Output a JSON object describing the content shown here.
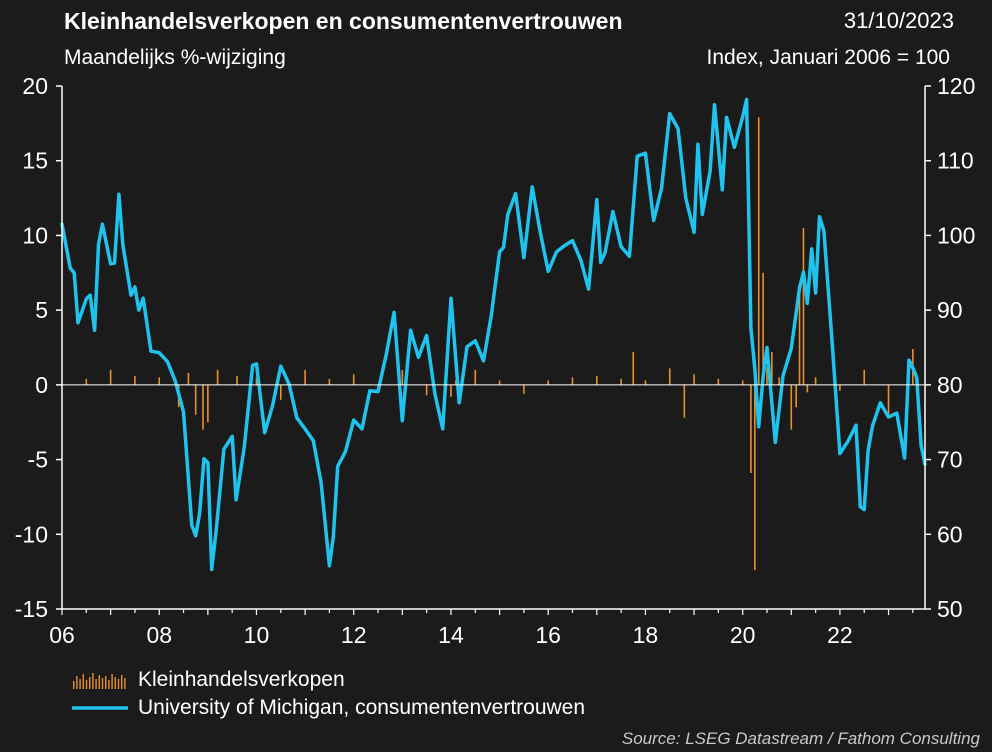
{
  "header": {
    "title": "Kleinhandelsverkopen en consumentenvertrouwen",
    "date": "31/10/2023",
    "left_axis_label": "Maandelijks %-wijziging",
    "right_axis_label": "Index, Januari 2006 = 100"
  },
  "footer": {
    "source": "Source: LSEG Datastream / Fathom Consulting"
  },
  "colors": {
    "background": "#1b1b1b",
    "retail_bars": "#e8902a",
    "sentiment_line": "#1fc3ee",
    "axis": "#ffffff"
  },
  "chart_data": {
    "type": "bar+line",
    "title": "Kleinhandelsverkopen en consumentenvertrouwen",
    "x_tick_labels": [
      "06",
      "08",
      "10",
      "12",
      "14",
      "16",
      "18",
      "20",
      "22"
    ],
    "x_range": [
      2006.0,
      2023.75
    ],
    "left_axis": {
      "label": "Maandelijks %-wijziging",
      "ylim": [
        -15,
        20
      ],
      "ticks": [
        -15,
        -10,
        -5,
        0,
        5,
        10,
        15,
        20
      ]
    },
    "right_axis": {
      "label": "Index, Januari 2006 = 100",
      "ylim": [
        50,
        120
      ],
      "ticks": [
        50,
        60,
        70,
        80,
        90,
        100,
        110,
        120
      ]
    },
    "grid": false,
    "legend_position": "bottom-left",
    "series": [
      {
        "name": "Kleinhandelsverkopen",
        "type": "bar",
        "axis": "left",
        "x": [
          2006.5,
          2007.0,
          2007.5,
          2008.0,
          2008.4,
          2008.6,
          2008.75,
          2008.9,
          2009.0,
          2009.2,
          2009.6,
          2010.0,
          2010.5,
          2011.0,
          2011.5,
          2012.0,
          2012.5,
          2013.0,
          2013.5,
          2014.0,
          2014.1,
          2014.5,
          2015.0,
          2015.5,
          2016.0,
          2016.5,
          2017.0,
          2017.5,
          2017.75,
          2018.0,
          2018.5,
          2018.8,
          2019.0,
          2019.5,
          2020.0,
          2020.17,
          2020.25,
          2020.33,
          2020.42,
          2020.5,
          2020.6,
          2020.75,
          2021.0,
          2021.1,
          2021.17,
          2021.25,
          2021.33,
          2021.5,
          2022.0,
          2022.5,
          2023.0,
          2023.5
        ],
        "values": [
          0.4,
          1.0,
          0.6,
          0.5,
          -1.5,
          0.8,
          -2.0,
          -3.0,
          -2.5,
          1.0,
          0.6,
          0.5,
          -1.0,
          1.0,
          0.4,
          0.7,
          -0.5,
          1.0,
          -0.7,
          -0.8,
          0.3,
          1.0,
          0.3,
          -0.6,
          0.3,
          0.5,
          0.6,
          0.4,
          2.2,
          0.3,
          1.1,
          -2.2,
          0.7,
          0.4,
          0.3,
          -5.9,
          -12.4,
          17.9,
          7.5,
          1.2,
          2.2,
          0.5,
          -3.0,
          -1.5,
          6.2,
          10.5,
          -0.5,
          0.5,
          -0.4,
          1.0,
          -2.0,
          2.4
        ]
      },
      {
        "name": "University of Michigan, consumentenvertrouwen",
        "type": "line",
        "axis": "right",
        "x": [
          2006.0,
          2006.17,
          2006.25,
          2006.33,
          2006.5,
          2006.58,
          2006.67,
          2006.75,
          2006.83,
          2007.0,
          2007.08,
          2007.17,
          2007.25,
          2007.42,
          2007.5,
          2007.58,
          2007.67,
          2007.83,
          2008.0,
          2008.17,
          2008.33,
          2008.5,
          2008.67,
          2008.75,
          2008.83,
          2008.92,
          2009.0,
          2009.08,
          2009.17,
          2009.33,
          2009.5,
          2009.58,
          2009.75,
          2009.92,
          2010.0,
          2010.17,
          2010.33,
          2010.5,
          2010.67,
          2010.83,
          2011.0,
          2011.17,
          2011.33,
          2011.5,
          2011.58,
          2011.67,
          2011.83,
          2012.0,
          2012.17,
          2012.33,
          2012.5,
          2012.67,
          2012.83,
          2013.0,
          2013.17,
          2013.33,
          2013.5,
          2013.67,
          2013.83,
          2014.0,
          2014.17,
          2014.33,
          2014.5,
          2014.67,
          2014.83,
          2015.0,
          2015.08,
          2015.17,
          2015.33,
          2015.5,
          2015.67,
          2015.83,
          2016.0,
          2016.17,
          2016.33,
          2016.5,
          2016.67,
          2016.83,
          2017.0,
          2017.08,
          2017.17,
          2017.33,
          2017.5,
          2017.67,
          2017.83,
          2018.0,
          2018.17,
          2018.33,
          2018.5,
          2018.67,
          2018.83,
          2019.0,
          2019.08,
          2019.17,
          2019.33,
          2019.42,
          2019.58,
          2019.67,
          2019.83,
          2020.0,
          2020.08,
          2020.17,
          2020.25,
          2020.33,
          2020.42,
          2020.5,
          2020.67,
          2020.83,
          2021.0,
          2021.17,
          2021.25,
          2021.33,
          2021.42,
          2021.5,
          2021.58,
          2021.67,
          2021.83,
          2022.0,
          2022.17,
          2022.33,
          2022.42,
          2022.5,
          2022.58,
          2022.67,
          2022.83,
          2023.0,
          2023.17,
          2023.33,
          2023.42,
          2023.5,
          2023.58,
          2023.67,
          2023.75
        ],
        "values": [
          101.5,
          95.6,
          95.0,
          88.3,
          91.5,
          92.0,
          87.3,
          98.8,
          101.5,
          96.2,
          96.3,
          105.5,
          98.8,
          92.0,
          93.1,
          90.0,
          91.6,
          84.5,
          84.3,
          83.1,
          80.5,
          76.4,
          61.2,
          59.8,
          62.8,
          70.1,
          69.6,
          55.3,
          60.4,
          71.4,
          73.1,
          64.6,
          71.7,
          82.6,
          82.8,
          73.6,
          77.2,
          82.5,
          80.1,
          75.6,
          74.1,
          72.5,
          66.9,
          55.8,
          59.6,
          69.1,
          71.1,
          75.3,
          74.1,
          79.2,
          79.1,
          84.1,
          89.7,
          75.2,
          87.3,
          83.7,
          86.6,
          78.8,
          74.1,
          91.6,
          77.6,
          85.1,
          85.9,
          83.2,
          89.3,
          97.8,
          98.4,
          102.8,
          105.6,
          97.0,
          106.5,
          100.7,
          95.2,
          97.8,
          98.6,
          99.3,
          96.7,
          92.8,
          104.8,
          96.4,
          97.7,
          103.2,
          98.5,
          97.2,
          110.6,
          111.0,
          102.0,
          106.3,
          116.3,
          114.3,
          105.0,
          100.4,
          112.2,
          102.8,
          108.6,
          117.5,
          106.1,
          115.8,
          111.8,
          115.9,
          118.2,
          87.6,
          82.2,
          74.4,
          81.1,
          85.0,
          72.3,
          81.2,
          84.9,
          93.0,
          95.1,
          90.9,
          98.2,
          92.3,
          102.5,
          100.6,
          86.5,
          70.8,
          72.5,
          74.6,
          63.7,
          63.3,
          71.2,
          74.5,
          77.6,
          75.7,
          76.2,
          70.2,
          83.3,
          82.3,
          81.0,
          71.9,
          69.4
        ]
      }
    ]
  }
}
